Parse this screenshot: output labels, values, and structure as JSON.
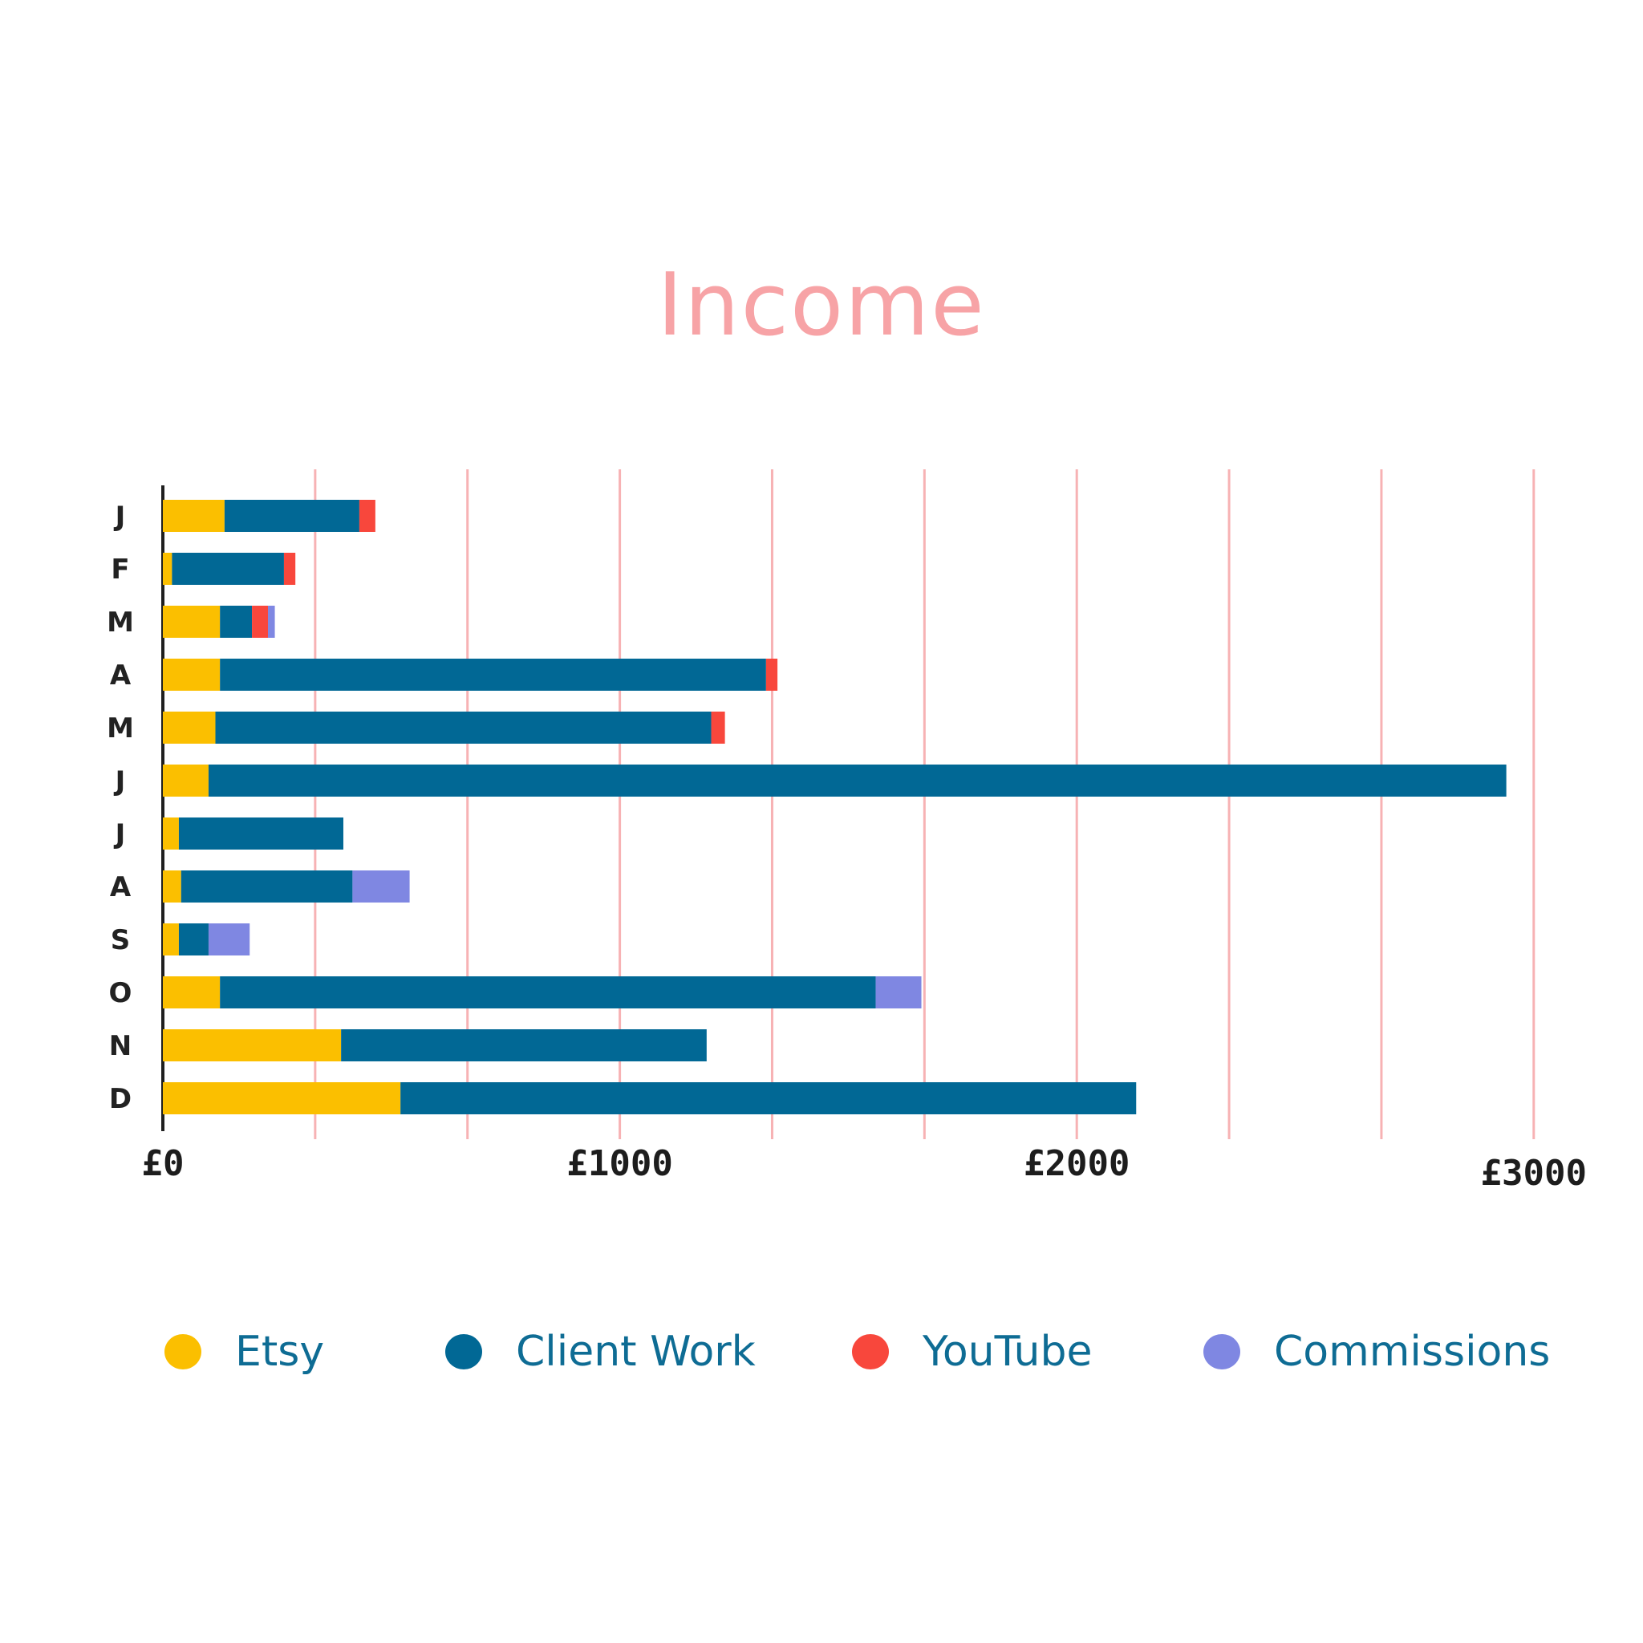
{
  "chart_data": {
    "type": "bar",
    "orientation": "horizontal",
    "stacked": true,
    "title": "Income",
    "categories": [
      "J",
      "F",
      "M",
      "A",
      "M",
      "J",
      "J",
      "A",
      "S",
      "O",
      "N",
      "D"
    ],
    "series": [
      {
        "name": "Etsy",
        "color": "#fbbf00",
        "values": [
          135,
          20,
          125,
          125,
          115,
          100,
          35,
          40,
          35,
          125,
          390,
          520
        ]
      },
      {
        "name": "Client Work",
        "color": "#016895",
        "values": [
          295,
          245,
          70,
          1195,
          1085,
          2840,
          360,
          375,
          65,
          1435,
          800,
          1610
        ]
      },
      {
        "name": "YouTube",
        "color": "#f8473c",
        "values": [
          35,
          25,
          35,
          25,
          30,
          0,
          0,
          0,
          0,
          0,
          0,
          0
        ]
      },
      {
        "name": "Commissions",
        "color": "#7f87e2",
        "values": [
          0,
          0,
          15,
          0,
          0,
          0,
          0,
          125,
          90,
          100,
          0,
          0
        ]
      }
    ],
    "x_ticks": [
      "£0",
      "£1000",
      "£2000",
      "£3000"
    ],
    "xlim": [
      0,
      3000
    ],
    "grid": true,
    "grid_color": "#f6a5a8",
    "legend_position": "bottom"
  }
}
